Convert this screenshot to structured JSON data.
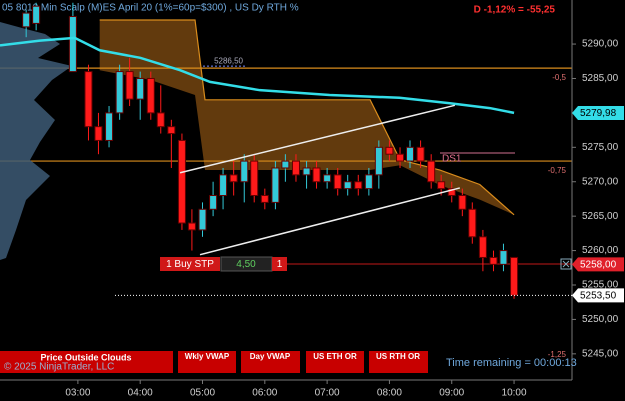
{
  "header": {
    "title": "05 8010 Min Scalp (M)ES  April 20 (1%=60p=$300) , US Dy RTH %",
    "pnl": "D -1,12% = -55,25"
  },
  "chart_data": {
    "type": "candlestick",
    "x": [
      2.17,
      2.33,
      2.92,
      3.17,
      3.33,
      3.5,
      3.67,
      3.83,
      4.0,
      4.17,
      4.33,
      4.5,
      4.67,
      4.83,
      5.0,
      5.17,
      5.33,
      5.5,
      5.67,
      5.83,
      6.0,
      6.17,
      6.33,
      6.5,
      6.67,
      6.83,
      7.0,
      7.17,
      7.33,
      7.5,
      7.67,
      7.83,
      8.0,
      8.17,
      8.33,
      8.5,
      8.67,
      8.83,
      9.0,
      9.17,
      9.33,
      9.5,
      9.67,
      9.83,
      10.0
    ],
    "open": [
      5292.5,
      5293,
      5286,
      5286,
      5278,
      5276,
      5280,
      5286,
      5282,
      5285,
      5280,
      5278,
      5276,
      5264,
      5263,
      5266,
      5268,
      5271,
      5270,
      5273,
      5268,
      5267,
      5272,
      5273,
      5271,
      5272,
      5270,
      5271,
      5269,
      5270,
      5269,
      5271,
      5275,
      5274,
      5273,
      5275,
      5273,
      5270,
      5269,
      5268,
      5266,
      5262,
      5259,
      5258,
      5259
    ],
    "high": [
      5295,
      5296,
      5296,
      5287,
      5280,
      5281,
      5287,
      5288,
      5286,
      5286,
      5284,
      5279,
      5277,
      5266,
      5267,
      5270,
      5272,
      5273,
      5274,
      5274,
      5269,
      5273,
      5274,
      5274,
      5273,
      5273,
      5272,
      5272,
      5271,
      5271,
      5272,
      5276,
      5276,
      5275,
      5276,
      5276,
      5274,
      5271,
      5270,
      5269,
      5267,
      5263,
      5260,
      5261,
      5259
    ],
    "low": [
      5291,
      5292,
      5286,
      5276,
      5274,
      5275,
      5279,
      5281,
      5279,
      5279,
      5277,
      5272,
      5263,
      5260,
      5262,
      5265,
      5266,
      5268,
      5267,
      5267,
      5266,
      5266,
      5270,
      5270,
      5269,
      5269,
      5269,
      5268,
      5268,
      5268,
      5268,
      5269,
      5273,
      5272,
      5272,
      5272,
      5269,
      5268,
      5267,
      5265,
      5261,
      5257,
      5257,
      5257,
      5253
    ],
    "close": [
      5294.5,
      5295.5,
      5294,
      5278,
      5276,
      5280,
      5286,
      5282,
      5285,
      5280,
      5278,
      5277,
      5264,
      5263,
      5266,
      5268,
      5271,
      5270,
      5273,
      5268,
      5267,
      5272,
      5273,
      5271,
      5272,
      5270,
      5271,
      5269,
      5270,
      5269,
      5271,
      5275,
      5274,
      5273,
      5275,
      5273,
      5270,
      5269,
      5268,
      5266,
      5262,
      5259,
      5258,
      5260,
      5253.5
    ],
    "up_color": "#33c8d8",
    "down_color": "#ff1a1a",
    "xlim": [
      1.75,
      10.93
    ],
    "xticks": [
      {
        "value": 3,
        "label": "03:00"
      },
      {
        "value": 4,
        "label": "04:00"
      },
      {
        "value": 5,
        "label": "05:00"
      },
      {
        "value": 6,
        "label": "06:00"
      },
      {
        "value": 7,
        "label": "07:00"
      },
      {
        "value": 8,
        "label": "08:00"
      },
      {
        "value": 9,
        "label": "09:00"
      },
      {
        "value": 10,
        "label": "10:00"
      }
    ],
    "ylim": [
      5241.2,
      5296.4
    ],
    "yticks": [
      {
        "value": 5245,
        "label": "5245,00"
      },
      {
        "value": 5250,
        "label": "5250,00"
      },
      {
        "value": 5255,
        "label": "5255,00"
      },
      {
        "value": 5260,
        "label": "5260,00"
      },
      {
        "value": 5265,
        "label": "5265,00"
      },
      {
        "value": 5270,
        "label": "5270,00"
      },
      {
        "value": 5275,
        "label": "5275,00"
      },
      {
        "value": 5280,
        "label": "5280,00"
      },
      {
        "value": 5285,
        "label": "5285,00"
      },
      {
        "value": 5290,
        "label": "5290,00"
      }
    ],
    "moving_average": {
      "color": "#33dde8",
      "x": [
        1.75,
        2.39,
        2.95,
        3.35,
        4.0,
        4.64,
        5.12,
        5.92,
        7.04,
        8.16,
        8.97,
        9.61,
        10.0
      ],
      "values": [
        5289.8,
        5290.5,
        5290.9,
        5289.1,
        5288,
        5286.2,
        5284.5,
        5283.3,
        5282.6,
        5282.2,
        5281.4,
        5280.7,
        5280
      ]
    },
    "cloud": {
      "color": "#7a4810",
      "edge": "#d98c1c",
      "x": [
        3.35,
        4.16,
        4.88,
        5.04,
        7.69,
        8.17,
        8.81,
        9.45,
        10.0
      ],
      "upper": [
        5293.5,
        5293.5,
        5293.5,
        5281.9,
        5281.9,
        5273.2,
        5271.7,
        5269.6,
        5265.2
      ],
      "lower": [
        5286.2,
        5284.8,
        5282.6,
        5271.7,
        5271.7,
        5272.4,
        5269.5,
        5267.4,
        5265.2
      ]
    },
    "levels": [
      {
        "value": 5286.5,
        "label": "5286,50",
        "color": "#d98c1c"
      },
      {
        "value": 5273,
        "color": "#d98c1c"
      }
    ],
    "trend_lines": [
      {
        "x": [
          4.64,
          9.05
        ],
        "y": [
          5271.3,
          5281.1
        ]
      },
      {
        "x": [
          4.96,
          9.13
        ],
        "y": [
          5259.4,
          5269.1
        ]
      }
    ],
    "price_markers": [
      {
        "value": 5279.98,
        "label": "5279,98",
        "color": "#33dde8"
      },
      {
        "value": 5258,
        "label": "5258,00",
        "color": "#e0202a"
      },
      {
        "value": 5253.5,
        "label": "5253,50",
        "color": "#ffffff"
      }
    ],
    "annotations": [
      "-0,5",
      "-0,75",
      "-1,25",
      "DS1"
    ]
  },
  "order": {
    "side": "1 Buy STP",
    "offset": "4,50",
    "qty": "1"
  },
  "buttons": [
    "Price Outside Clouds",
    "Wkly VWAP",
    "Day VWAP",
    "US ETH OR",
    "US RTH OR"
  ],
  "time_remaining": "Time remaining = 00:00:13",
  "copyright": "© 2025 NinjaTrader, LLC"
}
